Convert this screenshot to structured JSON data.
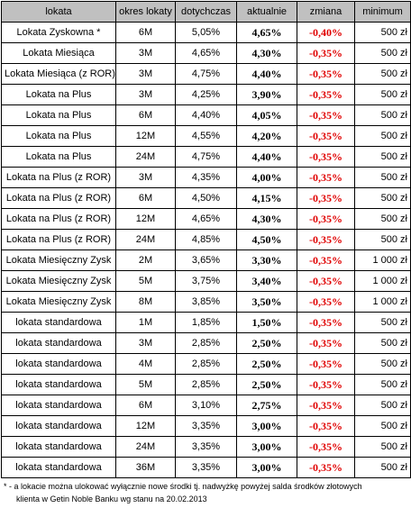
{
  "table": {
    "headers": [
      "lokata",
      "okres lokaty",
      "dotychczas",
      "aktualnie",
      "zmiana",
      "minimum"
    ],
    "rows": [
      [
        "Lokata Zyskowna *",
        "6M",
        "5,05%",
        "4,65%",
        "-0,40%",
        "500 zł"
      ],
      [
        "Lokata Miesiąca",
        "3M",
        "4,65%",
        "4,30%",
        "-0,35%",
        "500 zł"
      ],
      [
        "Lokata Miesiąca (z ROR)",
        "3M",
        "4,75%",
        "4,40%",
        "-0,35%",
        "500 zł"
      ],
      [
        "Lokata na Plus",
        "3M",
        "4,25%",
        "3,90%",
        "-0,35%",
        "500 zł"
      ],
      [
        "Lokata na Plus",
        "6M",
        "4,40%",
        "4,05%",
        "-0,35%",
        "500 zł"
      ],
      [
        "Lokata na Plus",
        "12M",
        "4,55%",
        "4,20%",
        "-0,35%",
        "500 zł"
      ],
      [
        "Lokata na Plus",
        "24M",
        "4,75%",
        "4,40%",
        "-0,35%",
        "500 zł"
      ],
      [
        "Lokata na Plus (z ROR)",
        "3M",
        "4,35%",
        "4,00%",
        "-0,35%",
        "500 zł"
      ],
      [
        "Lokata na Plus (z ROR)",
        "6M",
        "4,50%",
        "4,15%",
        "-0,35%",
        "500 zł"
      ],
      [
        "Lokata na Plus (z ROR)",
        "12M",
        "4,65%",
        "4,30%",
        "-0,35%",
        "500 zł"
      ],
      [
        "Lokata na Plus (z ROR)",
        "24M",
        "4,85%",
        "4,50%",
        "-0,35%",
        "500 zł"
      ],
      [
        "Lokata Miesięczny Zysk",
        "2M",
        "3,65%",
        "3,30%",
        "-0,35%",
        "1 000 zł"
      ],
      [
        "Lokata Miesięczny Zysk",
        "5M",
        "3,75%",
        "3,40%",
        "-0,35%",
        "1 000 zł"
      ],
      [
        "Lokata Miesięczny Zysk",
        "8M",
        "3,85%",
        "3,50%",
        "-0,35%",
        "1 000 zł"
      ],
      [
        "lokata standardowa",
        "1M",
        "1,85%",
        "1,50%",
        "-0,35%",
        "500 zł"
      ],
      [
        "lokata standardowa",
        "3M",
        "2,85%",
        "2,50%",
        "-0,35%",
        "500 zł"
      ],
      [
        "lokata standardowa",
        "4M",
        "2,85%",
        "2,50%",
        "-0,35%",
        "500 zł"
      ],
      [
        "lokata standardowa",
        "5M",
        "2,85%",
        "2,50%",
        "-0,35%",
        "500 zł"
      ],
      [
        "lokata standardowa",
        "6M",
        "3,10%",
        "2,75%",
        "-0,35%",
        "500 zł"
      ],
      [
        "lokata standardowa",
        "12M",
        "3,35%",
        "3,00%",
        "-0,35%",
        "500 zł"
      ],
      [
        "lokata standardowa",
        "24M",
        "3,35%",
        "3,00%",
        "-0,35%",
        "500 zł"
      ],
      [
        "lokata standardowa",
        "36M",
        "3,35%",
        "3,00%",
        "-0,35%",
        "500 zł"
      ]
    ]
  },
  "notes": {
    "line1": "* - a lokacie można ulokować wyłącznie nowe środki tj. nadwyżkę powyżej salda środków złotowych",
    "line2": "klienta w Getin Noble Banku wg stanu na 20.02.2013"
  },
  "colors": {
    "header_bg": "#c0c0c0",
    "change_text": "#e00000",
    "border": "#000000"
  }
}
